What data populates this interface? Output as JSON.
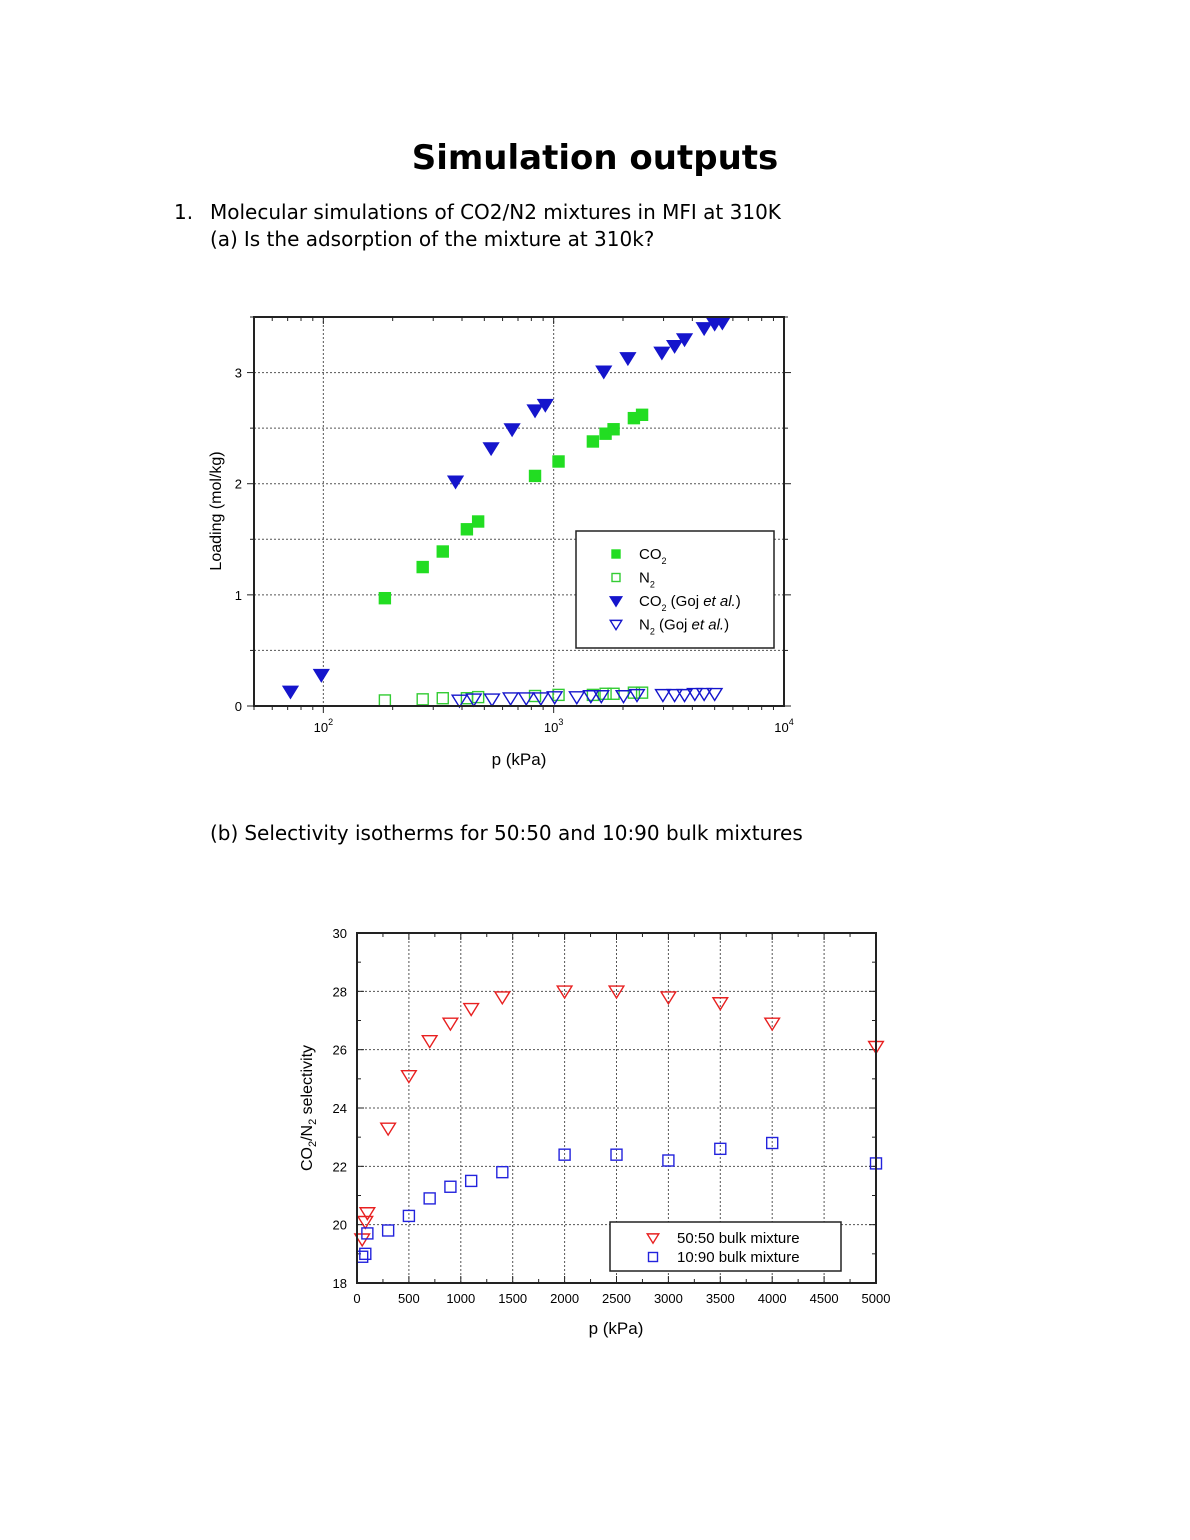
{
  "page": {
    "title": "Simulation outputs",
    "question1": {
      "number": "1.",
      "text": "Molecular simulations of CO2/N2 mixtures in MFI at 310K"
    },
    "question_a": {
      "label": "(a)",
      "text": "Is the adsorption of the mixture at 310k?"
    },
    "question_b": {
      "label": "(b)",
      "text": "Selectivity isotherms for 50:50 and 10:90 bulk mixtures"
    }
  },
  "chart_data": [
    {
      "type": "scatter",
      "xlabel": "p (kPa)",
      "ylabel": "Loading (mol/kg)",
      "xscale": "log",
      "xlim": [
        50,
        10000
      ],
      "ylim": [
        0,
        3.5
      ],
      "x_ticks": [
        {
          "value": 100,
          "base": "10",
          "exp": "2"
        },
        {
          "value": 1000,
          "base": "10",
          "exp": "3"
        },
        {
          "value": 10000,
          "base": "10",
          "exp": "4"
        }
      ],
      "y_ticks": [
        0,
        1,
        2,
        3
      ],
      "grid": true,
      "legend_position": "center-right",
      "legend_entries": [
        {
          "series": 0,
          "pre": "CO",
          "sub": "2",
          "post": "",
          "italic": ""
        },
        {
          "series": 1,
          "pre": "N",
          "sub": "2",
          "post": "",
          "italic": ""
        },
        {
          "series": 2,
          "pre": "CO",
          "sub": "2",
          "post": " (Goj ",
          "italic": "et al."
        },
        {
          "series": 3,
          "pre": "N",
          "sub": "2",
          "post": "  (Goj ",
          "italic": "et al."
        }
      ],
      "series": [
        {
          "marker": "square",
          "filled": true,
          "color": "#22dd22",
          "x": [
            185,
            270,
            330,
            420,
            470,
            830,
            1050,
            1480,
            1680,
            1820,
            2230,
            2420
          ],
          "y": [
            0.97,
            1.25,
            1.39,
            1.59,
            1.66,
            2.07,
            2.2,
            2.38,
            2.45,
            2.49,
            2.59,
            2.62
          ]
        },
        {
          "marker": "square",
          "filled": false,
          "color": "#33cc33",
          "x": [
            185,
            270,
            330,
            420,
            470,
            830,
            1050,
            1480,
            1680,
            1820,
            2230,
            2420
          ],
          "y": [
            0.05,
            0.06,
            0.07,
            0.07,
            0.08,
            0.09,
            0.1,
            0.1,
            0.11,
            0.11,
            0.12,
            0.12
          ]
        },
        {
          "marker": "triangle-down",
          "filled": true,
          "color": "#1515cc",
          "x": [
            72,
            98,
            375,
            535,
            660,
            830,
            920,
            1650,
            2100,
            2950,
            3350,
            3700,
            4500,
            5000,
            5400
          ],
          "y": [
            0.13,
            0.28,
            2.02,
            2.32,
            2.49,
            2.66,
            2.71,
            3.01,
            3.13,
            3.18,
            3.24,
            3.3,
            3.4,
            3.44,
            3.45
          ]
        },
        {
          "marker": "triangle-down",
          "filled": false,
          "color": "#1515cc",
          "x": [
            390,
            450,
            540,
            650,
            760,
            880,
            1010,
            1260,
            1450,
            1610,
            2010,
            2300,
            2980,
            3350,
            3700,
            4100,
            4500,
            5000
          ],
          "y": [
            0.05,
            0.06,
            0.06,
            0.07,
            0.07,
            0.07,
            0.08,
            0.08,
            0.09,
            0.09,
            0.09,
            0.1,
            0.1,
            0.1,
            0.1,
            0.11,
            0.11,
            0.11
          ]
        }
      ]
    },
    {
      "type": "scatter",
      "xlabel": "p (kPa)",
      "ylabel_parts": {
        "a": "CO",
        "a_sub": "2",
        "b": "/N",
        "b_sub": "2",
        "c": " selectivity"
      },
      "xlim": [
        0,
        5000
      ],
      "ylim": [
        18,
        30
      ],
      "x_ticks": [
        0,
        500,
        1000,
        1500,
        2000,
        2500,
        3000,
        3500,
        4000,
        4500,
        5000
      ],
      "y_ticks": [
        18,
        20,
        22,
        24,
        26,
        28,
        30
      ],
      "grid": true,
      "legend_position": "bottom-right",
      "series": [
        {
          "name": "50:50 bulk mixture",
          "marker": "triangle-down",
          "filled": false,
          "color": "#e82020",
          "x": [
            50,
            80,
            100,
            300,
            500,
            700,
            900,
            1100,
            1400,
            2000,
            2500,
            3000,
            3500,
            4000,
            5000
          ],
          "y": [
            19.5,
            20.1,
            20.4,
            23.3,
            25.1,
            26.3,
            26.9,
            27.4,
            27.8,
            28.0,
            28.0,
            27.8,
            27.6,
            26.9,
            26.1
          ]
        },
        {
          "name": "10:90 bulk mixture",
          "marker": "square",
          "filled": false,
          "color": "#2323dd",
          "x": [
            50,
            80,
            100,
            300,
            500,
            700,
            900,
            1100,
            1400,
            2000,
            2500,
            3000,
            3500,
            4000,
            5000
          ],
          "y": [
            18.9,
            19.0,
            19.7,
            19.8,
            20.3,
            20.9,
            21.3,
            21.5,
            21.8,
            22.4,
            22.4,
            22.2,
            22.6,
            22.8,
            22.1
          ]
        }
      ]
    }
  ]
}
